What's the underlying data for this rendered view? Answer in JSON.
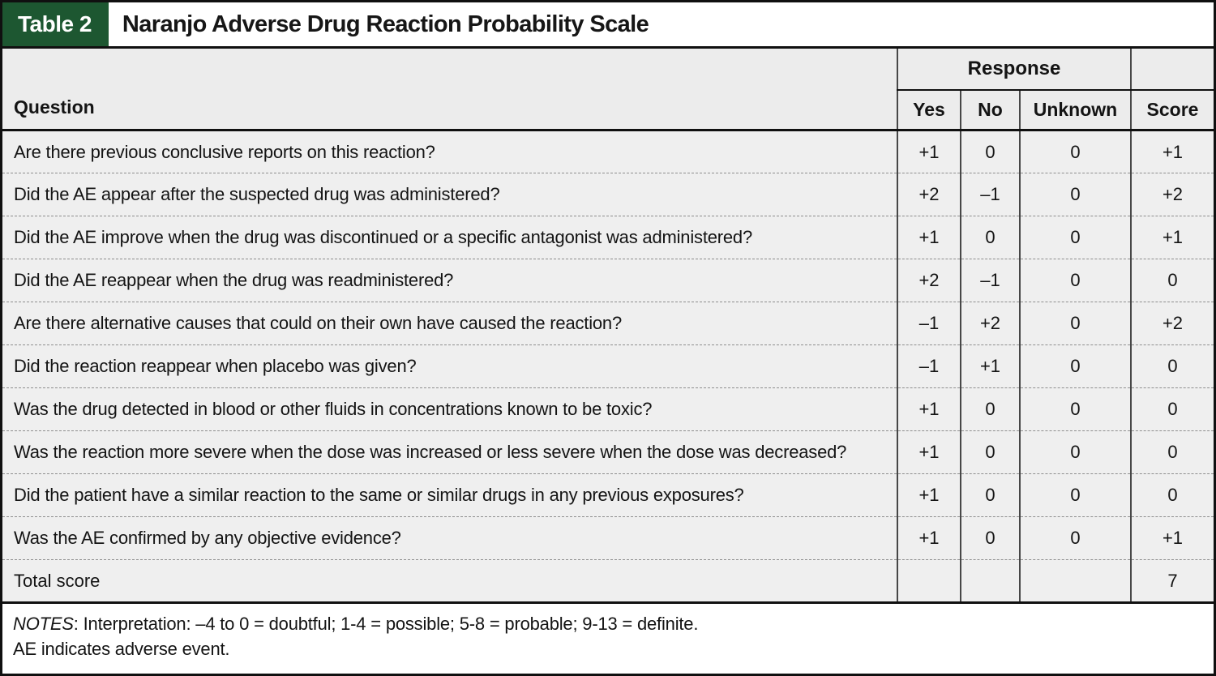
{
  "page": {
    "table_label": "Table 2",
    "title": "Naranjo Adverse Drug Reaction Probability Scale"
  },
  "colors": {
    "header_green": "#1d5731",
    "header_gray": "#ececec",
    "row_gray": "#efefef",
    "border": "#101010",
    "divider": "#474747",
    "dash": "#8e8e8e"
  },
  "table": {
    "question_header": "Question",
    "response_header": "Response",
    "columns": [
      "Yes",
      "No",
      "Unknown",
      "Score"
    ],
    "rows": [
      {
        "question": "Are there previous conclusive reports on this reaction?",
        "yes": "+1",
        "no": "0",
        "unknown": "0",
        "score": "+1"
      },
      {
        "question": "Did the AE appear after the suspected drug was administered?",
        "yes": "+2",
        "no": "–1",
        "unknown": "0",
        "score": "+2"
      },
      {
        "question": "Did the AE improve when the drug was discontinued or a specific antagonist was administered?",
        "yes": "+1",
        "no": "0",
        "unknown": "0",
        "score": "+1"
      },
      {
        "question": "Did the AE reappear when the drug was readministered?",
        "yes": "+2",
        "no": "–1",
        "unknown": "0",
        "score": "0"
      },
      {
        "question": "Are there alternative causes that could on their own have caused the reaction?",
        "yes": "–1",
        "no": "+2",
        "unknown": "0",
        "score": "+2"
      },
      {
        "question": "Did the reaction reappear when placebo was given?",
        "yes": "–1",
        "no": "+1",
        "unknown": "0",
        "score": "0"
      },
      {
        "question": "Was the drug detected in blood or other fluids in concentrations known to be toxic?",
        "yes": "+1",
        "no": "0",
        "unknown": "0",
        "score": "0"
      },
      {
        "question": "Was the reaction more severe when the dose was increased or less severe when the dose was decreased?",
        "yes": "+1",
        "no": "0",
        "unknown": "0",
        "score": "0"
      },
      {
        "question": "Did the patient have a similar reaction to the same or similar drugs in any previous exposures?",
        "yes": "+1",
        "no": "0",
        "unknown": "0",
        "score": "0"
      },
      {
        "question": "Was the AE confirmed by any objective evidence?",
        "yes": "+1",
        "no": "0",
        "unknown": "0",
        "score": "+1"
      }
    ],
    "total_row": {
      "label": "Total score",
      "yes": "",
      "no": "",
      "unknown": "",
      "score": "7"
    }
  },
  "notes": {
    "label": "NOTES",
    "line1_rest": ": Interpretation: –4 to 0 = doubtful; 1-4 = possible; 5-8 = probable; 9-13 = definite.",
    "line2": "AE indicates adverse event."
  }
}
